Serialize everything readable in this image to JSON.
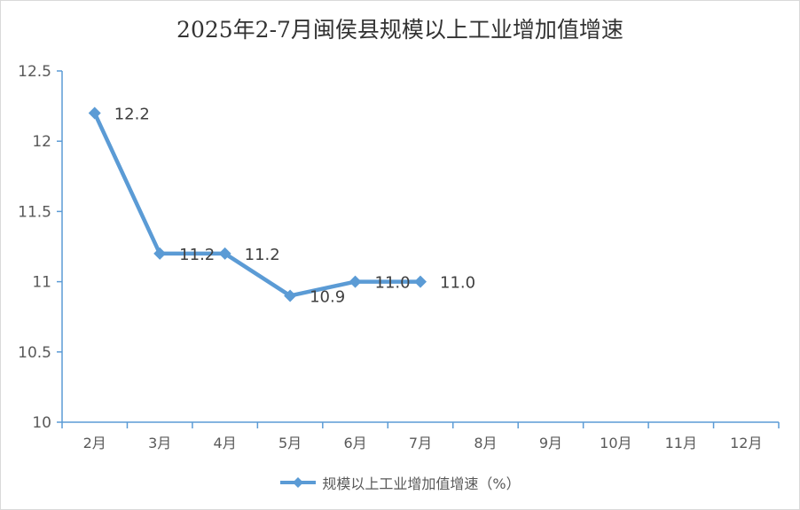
{
  "colors": {
    "series": "#5b9bd5",
    "axis": "#5b9bd5"
  },
  "chart_data": {
    "type": "line",
    "title": "2025年2-7月闽侯县规模以上工业增加值增速",
    "categories": [
      "2月",
      "3月",
      "4月",
      "5月",
      "6月",
      "7月",
      "8月",
      "9月",
      "10月",
      "11月",
      "12月"
    ],
    "series": [
      {
        "name": "规模以上工业增加值增速（%）",
        "values": [
          12.2,
          11.2,
          11.2,
          10.9,
          11.0,
          11.0,
          null,
          null,
          null,
          null,
          null
        ],
        "data_labels": [
          "12.2",
          "11.2",
          "11.2",
          "10.9",
          "11.0",
          "11.0"
        ]
      }
    ],
    "y_ticks": [
      "10",
      "10.5",
      "11",
      "11.5",
      "12",
      "12.5"
    ],
    "ylim": [
      10,
      12.5
    ],
    "grid": false,
    "legend": "bottom",
    "marker": "diamond"
  }
}
